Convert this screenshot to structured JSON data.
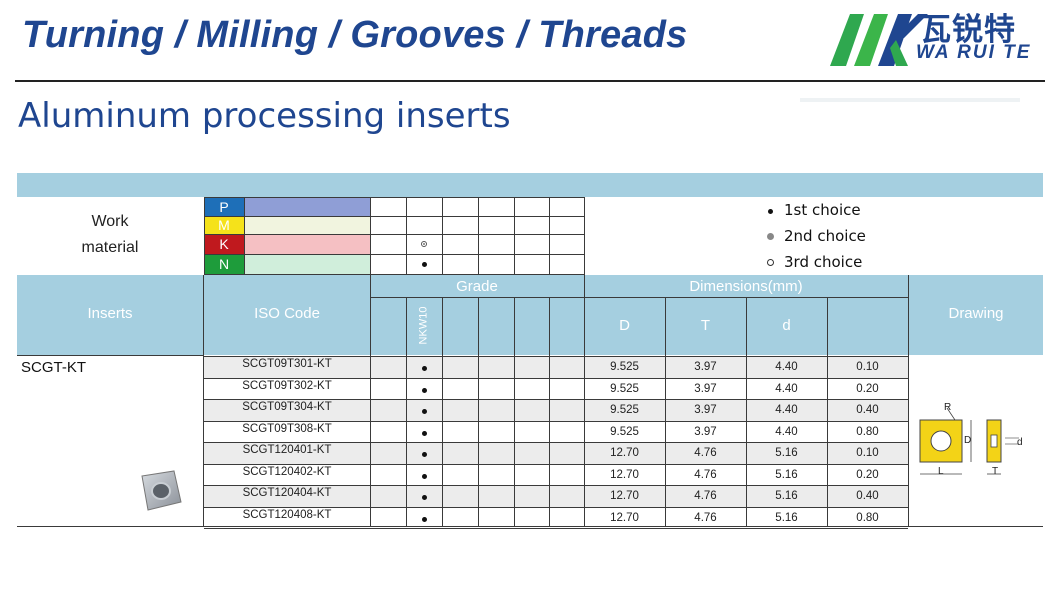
{
  "header": {
    "title": "Turning / Milling / Grooves / Threads",
    "subtitle": "Aluminum processing inserts",
    "logo_cn": "瓦锐特",
    "logo_en": "WA RUI TE"
  },
  "work_material": {
    "label_line1": "Work",
    "label_line2": "material",
    "rows": [
      {
        "letter": "P",
        "color": "#1e6fb8",
        "fill": "#8f9ed6"
      },
      {
        "letter": "M",
        "color": "#f5e21a",
        "fill": "#f1f4df"
      },
      {
        "letter": "K",
        "color": "#c0191e",
        "fill": "#f5c0c3"
      },
      {
        "letter": "N",
        "color": "#1e9c3b",
        "fill": "#d0eedb"
      }
    ],
    "k_mark": "2nd choice",
    "n_mark": "1st choice"
  },
  "legend": {
    "first": "1st choice",
    "second": "2nd choice",
    "third": "3rd choice"
  },
  "table": {
    "inserts_header": "Inserts",
    "iso_header": "ISO Code",
    "grade_header": "Grade",
    "grade_name": "NKW10",
    "dimensions_header": "Dimensions(mm)",
    "dim_cols": [
      "D",
      "T",
      "d",
      ""
    ],
    "drawing_header": "Drawing",
    "insert_name": "SCGT-KT",
    "rows": [
      {
        "code": "SCGT09T301-KT",
        "D": "9.525",
        "T": "3.97",
        "d": "4.40",
        "r": "0.10"
      },
      {
        "code": "SCGT09T302-KT",
        "D": "9.525",
        "T": "3.97",
        "d": "4.40",
        "r": "0.20"
      },
      {
        "code": "SCGT09T304-KT",
        "D": "9.525",
        "T": "3.97",
        "d": "4.40",
        "r": "0.40"
      },
      {
        "code": "SCGT09T308-KT",
        "D": "9.525",
        "T": "3.97",
        "d": "4.40",
        "r": "0.80"
      },
      {
        "code": "SCGT120401-KT",
        "D": "12.70",
        "T": "4.76",
        "d": "5.16",
        "r": "0.10"
      },
      {
        "code": "SCGT120402-KT",
        "D": "12.70",
        "T": "4.76",
        "d": "5.16",
        "r": "0.20"
      },
      {
        "code": "SCGT120404-KT",
        "D": "12.70",
        "T": "4.76",
        "d": "5.16",
        "r": "0.40"
      },
      {
        "code": "SCGT120408-KT",
        "D": "12.70",
        "T": "4.76",
        "d": "5.16",
        "r": "0.80"
      }
    ]
  },
  "drawing_labels": {
    "R": "R",
    "D": "D",
    "d": "d",
    "L": "L",
    "T": "T"
  }
}
